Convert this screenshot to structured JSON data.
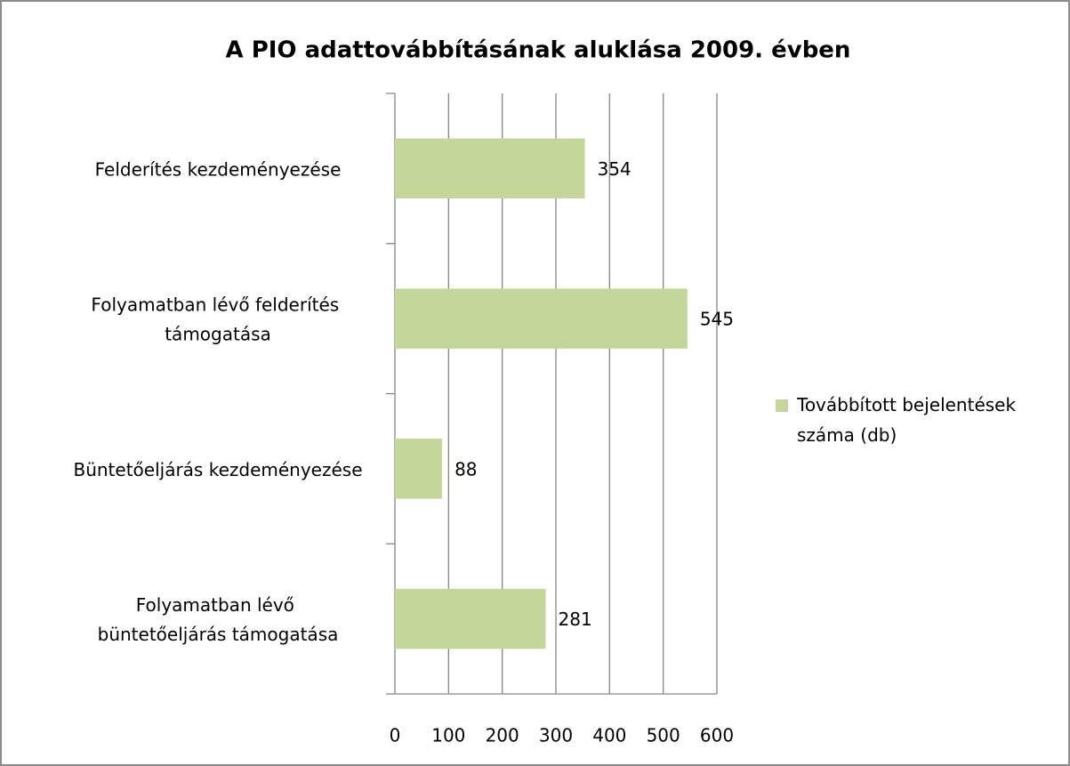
{
  "chart_data": {
    "type": "bar",
    "orientation": "horizontal",
    "title": "A PIO adattovábbításának aluklása 2009. évben",
    "categories": [
      "Felderítés kezdeményezése",
      "Folyamatban lévő felderítés támogatása",
      "Büntetőeljárás kezdeményezése",
      "Folyamatban lévő büntetőeljárás támogatása"
    ],
    "series": [
      {
        "name": "Továbbított bejelentések száma (db)",
        "color": "#c4d79b",
        "values": [
          354,
          545,
          88,
          281
        ]
      }
    ],
    "xlim": [
      0,
      600
    ],
    "xticks": [
      0,
      100,
      200,
      300,
      400,
      500,
      600
    ],
    "grid": true,
    "legend": "right"
  }
}
